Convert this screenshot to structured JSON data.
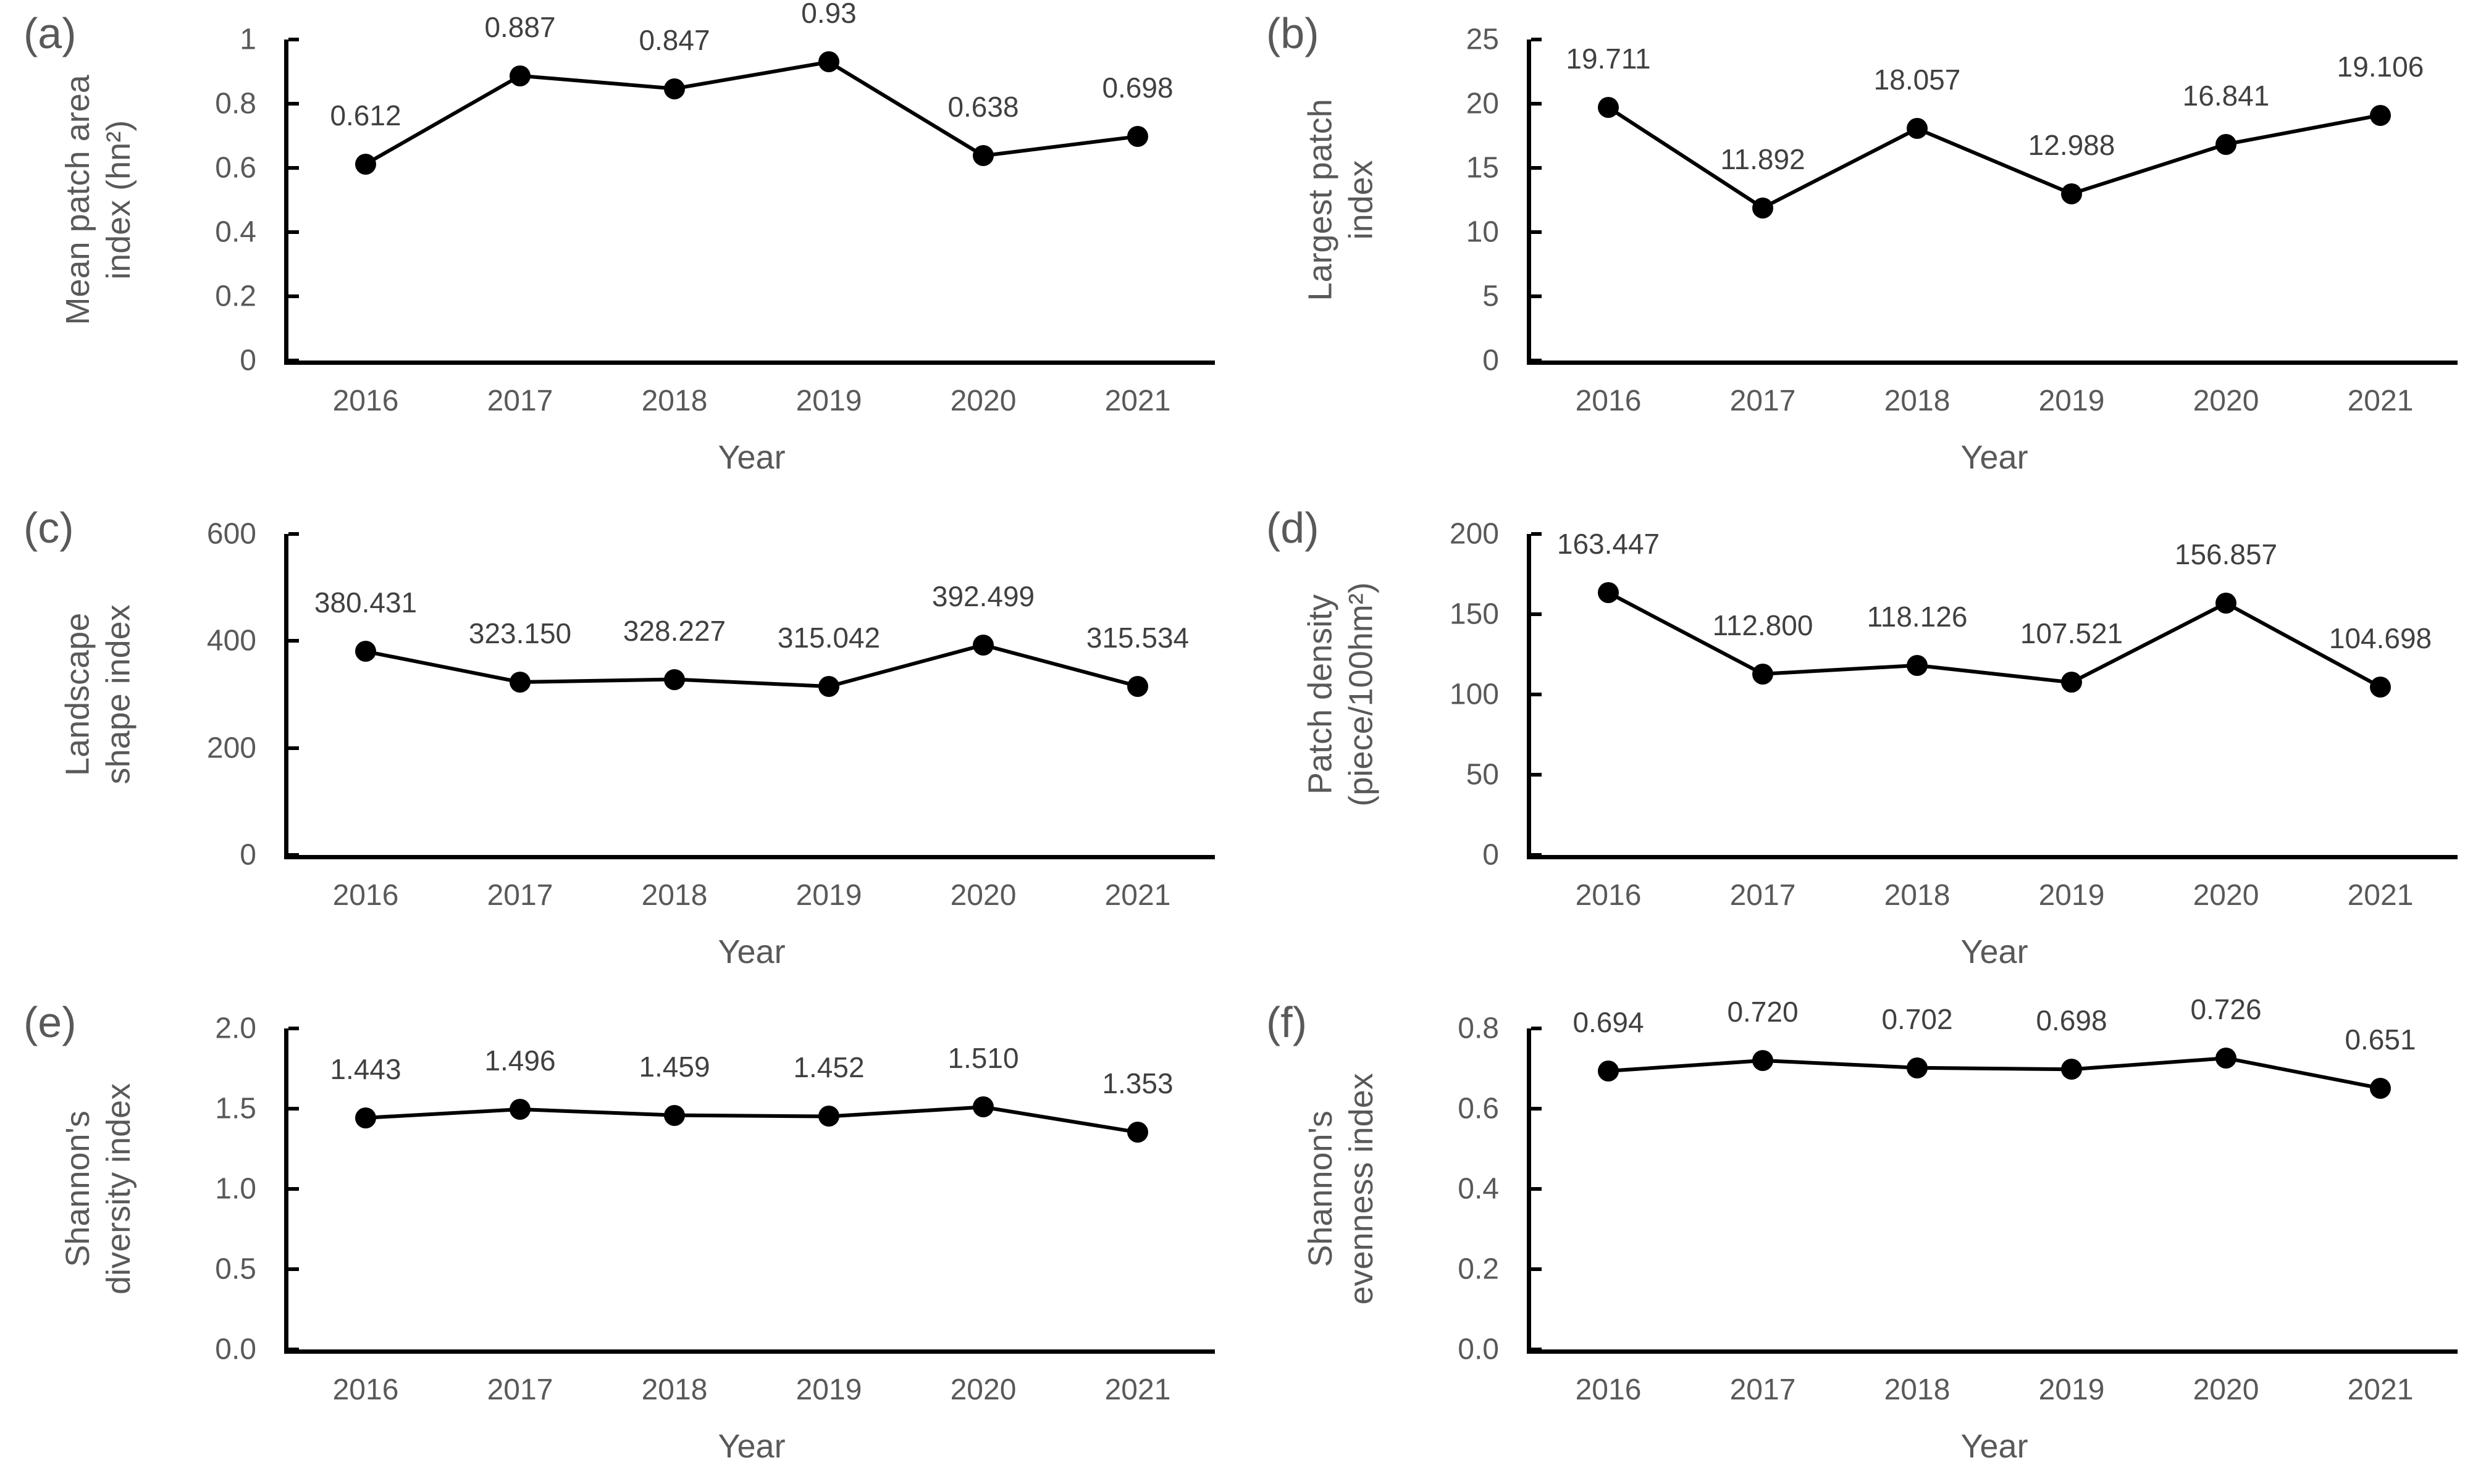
{
  "figure": {
    "background": "#ffffff",
    "colors": {
      "axis_text": "#595959",
      "data_label_text": "#404040",
      "line": "#000000",
      "marker": "#000000",
      "axis_line": "#000000"
    }
  },
  "chart_data": [
    {
      "type": "line",
      "panel_letter": "(a)",
      "ylabel": "Mean patch area index (hn²)",
      "ylabel_lines": [
        "Mean patch area",
        "index (hn²)"
      ],
      "xlabel": "Year",
      "categories": [
        "2016",
        "2017",
        "2018",
        "2019",
        "2020",
        "2021"
      ],
      "values": [
        0.612,
        0.887,
        0.847,
        0.93,
        0.638,
        0.698
      ],
      "data_labels": [
        "0.612",
        "0.887",
        "0.847",
        "0.93",
        "0.638",
        "0.698"
      ],
      "ylim": [
        0,
        1
      ],
      "yticks": [
        0,
        0.2,
        0.4,
        0.6,
        0.8,
        1
      ],
      "ytick_labels": [
        "0",
        "0.2",
        "0.4",
        "0.6",
        "0.8",
        "1"
      ],
      "grid": false,
      "legend": "none",
      "marker": "filled-circle"
    },
    {
      "type": "line",
      "panel_letter": "(b)",
      "ylabel": "Largest patch index",
      "ylabel_lines": [
        "Largest patch",
        "index"
      ],
      "xlabel": "Year",
      "categories": [
        "2016",
        "2017",
        "2018",
        "2019",
        "2020",
        "2021"
      ],
      "values": [
        19.711,
        11.892,
        18.057,
        12.988,
        16.841,
        19.106
      ],
      "data_labels": [
        "19.711",
        "11.892",
        "18.057",
        "12.988",
        "16.841",
        "19.106"
      ],
      "ylim": [
        0,
        25
      ],
      "yticks": [
        0,
        5,
        10,
        15,
        20,
        25
      ],
      "ytick_labels": [
        "0",
        "5",
        "10",
        "15",
        "20",
        "25"
      ],
      "grid": false,
      "legend": "none",
      "marker": "filled-circle"
    },
    {
      "type": "line",
      "panel_letter": "(c)",
      "ylabel": "Landscape shape index",
      "ylabel_lines": [
        "Landscape",
        "shape index"
      ],
      "xlabel": "Year",
      "categories": [
        "2016",
        "2017",
        "2018",
        "2019",
        "2020",
        "2021"
      ],
      "values": [
        380.431,
        323.15,
        328.227,
        315.042,
        392.499,
        315.534
      ],
      "data_labels": [
        "380.431",
        "323.150",
        "328.227",
        "315.042",
        "392.499",
        "315.534"
      ],
      "ylim": [
        0,
        600
      ],
      "yticks": [
        0,
        200,
        400,
        600
      ],
      "ytick_labels": [
        "0",
        "200",
        "400",
        "600"
      ],
      "grid": false,
      "legend": "none",
      "marker": "filled-circle"
    },
    {
      "type": "line",
      "panel_letter": "(d)",
      "ylabel": "Patch density (piece/100hm²)",
      "ylabel_lines": [
        "Patch density",
        "(piece/100hm²)"
      ],
      "xlabel": "Year",
      "categories": [
        "2016",
        "2017",
        "2018",
        "2019",
        "2020",
        "2021"
      ],
      "values": [
        163.447,
        112.8,
        118.126,
        107.521,
        156.857,
        104.698
      ],
      "data_labels": [
        "163.447",
        "112.800",
        "118.126",
        "107.521",
        "156.857",
        "104.698"
      ],
      "ylim": [
        0,
        200
      ],
      "yticks": [
        0,
        50,
        100,
        150,
        200
      ],
      "ytick_labels": [
        "0",
        "50",
        "100",
        "150",
        "200"
      ],
      "grid": false,
      "legend": "none",
      "marker": "filled-circle"
    },
    {
      "type": "line",
      "panel_letter": "(e)",
      "ylabel": "Shannon's diversity index",
      "ylabel_lines": [
        "Shannon's",
        "diversity index"
      ],
      "xlabel": "Year",
      "categories": [
        "2016",
        "2017",
        "2018",
        "2019",
        "2020",
        "2021"
      ],
      "values": [
        1.443,
        1.496,
        1.459,
        1.452,
        1.51,
        1.353
      ],
      "data_labels": [
        "1.443",
        "1.496",
        "1.459",
        "1.452",
        "1.510",
        "1.353"
      ],
      "ylim": [
        0,
        2
      ],
      "yticks": [
        0,
        0.5,
        1.0,
        1.5,
        2.0
      ],
      "ytick_labels": [
        "0.0",
        "0.5",
        "1.0",
        "1.5",
        "2.0"
      ],
      "grid": false,
      "legend": "none",
      "marker": "filled-circle"
    },
    {
      "type": "line",
      "panel_letter": "(f)",
      "ylabel": "Shannon's evenness index",
      "ylabel_lines": [
        "Shannon's",
        "evenness index"
      ],
      "xlabel": "Year",
      "categories": [
        "2016",
        "2017",
        "2018",
        "2019",
        "2020",
        "2021"
      ],
      "values": [
        0.694,
        0.72,
        0.702,
        0.698,
        0.726,
        0.651
      ],
      "data_labels": [
        "0.694",
        "0.720",
        "0.702",
        "0.698",
        "0.726",
        "0.651"
      ],
      "ylim": [
        0,
        0.8
      ],
      "yticks": [
        0,
        0.2,
        0.4,
        0.6,
        0.8
      ],
      "ytick_labels": [
        "0.0",
        "0.2",
        "0.4",
        "0.6",
        "0.8"
      ],
      "grid": false,
      "legend": "none",
      "marker": "filled-circle"
    }
  ]
}
